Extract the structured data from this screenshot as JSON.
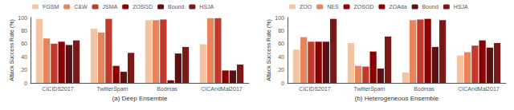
{
  "chart_data": [
    {
      "type": "bar",
      "xlabel": "(a) Deep Ensemble",
      "ylabel": "Attack Success Rate (%)",
      "categories": [
        "CICIDS2017",
        "TwitterSpam",
        "Bodmas",
        "CICAndMal2017"
      ],
      "series": [
        {
          "name": "FGSM",
          "color": "#f5c5a3",
          "values": [
            98,
            83,
            96,
            59
          ]
        },
        {
          "name": "C&W",
          "color": "#e8845a",
          "values": [
            68,
            77,
            96,
            99
          ]
        },
        {
          "name": "JSMA",
          "color": "#c0392b",
          "values": [
            60,
            98,
            97,
            99
          ]
        },
        {
          "name": "ZOSGD",
          "color": "#8b0000",
          "values": [
            63,
            26,
            4,
            19
          ]
        },
        {
          "name": "Bound",
          "color": "#5c1010",
          "values": [
            58,
            17,
            45,
            19
          ]
        },
        {
          "name": "HSJA",
          "color": "#7b1818",
          "values": [
            65,
            46,
            55,
            28
          ]
        }
      ],
      "ylim": [
        0,
        100
      ],
      "yticks": [
        0,
        20,
        40,
        60,
        80,
        100
      ],
      "grid": false,
      "legend": "upper left"
    },
    {
      "type": "bar",
      "xlabel": "(b) Heterogeneous Ensemble",
      "ylabel": "Attack Success Rate (%)",
      "categories": [
        "CICIDS2017",
        "TwitterSpam",
        "Bodmas",
        "CICAndMal2017"
      ],
      "series": [
        {
          "name": "ZOO",
          "color": "#f5c5a3",
          "values": [
            51,
            61,
            16,
            42
          ]
        },
        {
          "name": "NES",
          "color": "#e8845a",
          "values": [
            70,
            26,
            96,
            47
          ]
        },
        {
          "name": "ZOSGD",
          "color": "#c0392b",
          "values": [
            63,
            25,
            97,
            57
          ]
        },
        {
          "name": "ZOAda",
          "color": "#8b0000",
          "values": [
            63,
            48,
            98,
            65
          ]
        },
        {
          "name": "Bound",
          "color": "#5c1010",
          "values": [
            63,
            22,
            55,
            54
          ]
        },
        {
          "name": "HSJA",
          "color": "#7b1818",
          "values": [
            98,
            71,
            96,
            61
          ]
        }
      ],
      "ylim": [
        0,
        100
      ],
      "yticks": [
        0,
        20,
        40,
        60,
        80,
        100
      ],
      "grid": false,
      "legend": "upper left"
    }
  ]
}
